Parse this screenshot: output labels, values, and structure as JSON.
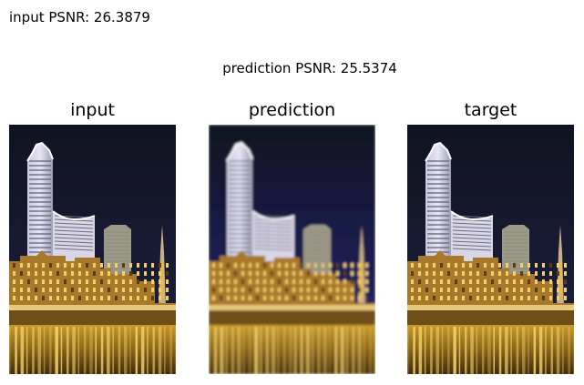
{
  "header": {
    "input_psnr": "input PSNR: 26.3879",
    "prediction_psnr": "prediction PSNR: 25.5374"
  },
  "panels": [
    {
      "title": "input",
      "variant": "sharp"
    },
    {
      "title": "prediction",
      "variant": "blurry"
    },
    {
      "title": "target",
      "variant": "sharp"
    }
  ],
  "colors": {
    "sky_top": "#10131f",
    "sky_mid": "#1a1d3a",
    "sky_pred": "#1f2060",
    "tower_light": "#e8e6f4",
    "tower_glow": "#9aa2ff",
    "building_warm": "#a8782b",
    "building_light": "#f3cf6c",
    "water_top": "#c99a2c",
    "water_bottom": "#3f2c0b"
  }
}
